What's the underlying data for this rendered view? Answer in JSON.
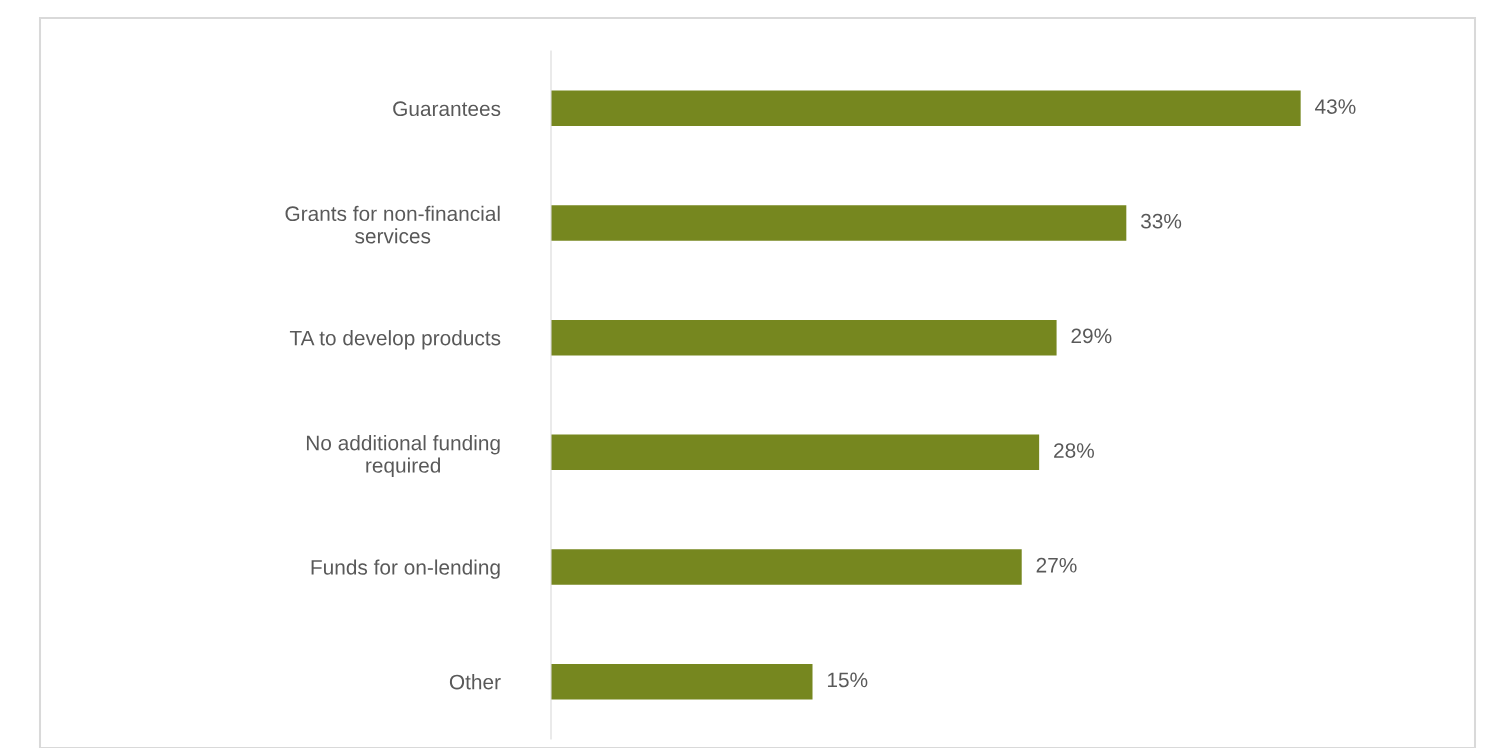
{
  "chart_data": {
    "type": "bar",
    "orientation": "horizontal",
    "categories": [
      "Guarantees",
      "Grants for non-financial\nservices",
      "TA to develop products",
      "No additional funding\nrequired",
      "Funds for on-lending",
      "Other"
    ],
    "values": [
      43,
      33,
      29,
      28,
      27,
      15
    ],
    "value_labels": [
      "43%",
      "33%",
      "29%",
      "28%",
      "27%",
      "15%"
    ],
    "color": "#76871f",
    "xlim": [
      0,
      53
    ],
    "grid": false,
    "legend": false,
    "tick_labels": "y"
  }
}
